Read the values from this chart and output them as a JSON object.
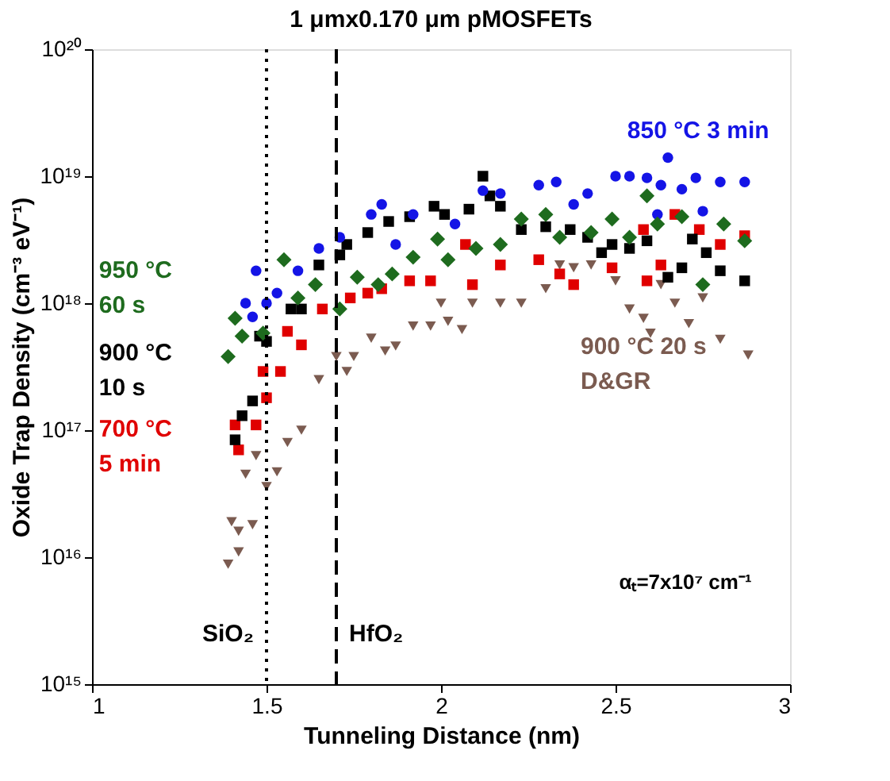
{
  "chart_data": {
    "type": "scatter",
    "title": "1 μmx0.170 μm pMOSFETs",
    "xlabel": "Tunneling Distance (nm)",
    "ylabel": "Oxide Trap Density (cm⁻³ eV⁻¹)",
    "xlim": [
      1,
      3
    ],
    "xticks": [
      1,
      1.5,
      2,
      2.5,
      3
    ],
    "ylim": [
      1000000000000000.0,
      1e+20
    ],
    "yticks": [
      {
        "value": 1000000000000000.0,
        "label": "10¹⁵"
      },
      {
        "value": 1e+16,
        "label": "10¹⁶"
      },
      {
        "value": 1e+17,
        "label": "10¹⁷"
      },
      {
        "value": 1e+18,
        "label": "10¹⁸"
      },
      {
        "value": 1e+19,
        "label": "10¹⁹"
      },
      {
        "value": 1e+20,
        "label": "10²⁰"
      }
    ],
    "log": true,
    "grid": false,
    "series": [
      {
        "name": "850 °C 3 min",
        "color": "#1414e6",
        "marker": "circle",
        "x": [
          1.44,
          1.46,
          1.47,
          1.5,
          1.53,
          1.59,
          1.65,
          1.71,
          1.8,
          1.83,
          1.87,
          1.92,
          2.04,
          2.12,
          2.17,
          2.28,
          2.33,
          2.38,
          2.42,
          2.5,
          2.54,
          2.59,
          2.62,
          2.63,
          2.65,
          2.69,
          2.73,
          2.75,
          2.8,
          2.87
        ],
        "values": [
          1e+18,
          7.8e+17,
          1.8e+18,
          1e+18,
          1.2e+18,
          1.8e+18,
          2.7e+18,
          3.3e+18,
          5e+18,
          6e+18,
          2.9e+18,
          5e+18,
          4.2e+18,
          7.7e+18,
          7.3e+18,
          8.5e+18,
          9e+18,
          6e+18,
          7.3e+18,
          1e+19,
          1e+19,
          9.7e+18,
          5e+18,
          8.5e+18,
          1.4e+19,
          7.9e+18,
          9.7e+18,
          5.3e+18,
          9e+18,
          9e+18
        ]
      },
      {
        "name": "950 °C\n60 s",
        "color": "#1e6b1e",
        "marker": "diamond",
        "x": [
          1.39,
          1.41,
          1.43,
          1.49,
          1.55,
          1.59,
          1.64,
          1.71,
          1.76,
          1.82,
          1.86,
          1.92,
          1.99,
          2.02,
          2.1,
          2.17,
          2.23,
          2.3,
          2.34,
          2.43,
          2.49,
          2.54,
          2.59,
          2.62,
          2.69,
          2.75,
          2.81,
          2.87
        ],
        "values": [
          3.8e+17,
          7.6e+17,
          5.5e+17,
          5.8e+17,
          2.2e+18,
          1.1e+18,
          1.4e+18,
          9e+17,
          1.6e+18,
          1.4e+18,
          1.7e+18,
          2.3e+18,
          3.2e+18,
          2.2e+18,
          2.7e+18,
          2.9e+18,
          4.6e+18,
          5e+18,
          3.3e+18,
          3.6e+18,
          4.6e+18,
          3.3e+18,
          7e+18,
          4.2e+18,
          4.8e+18,
          1.4e+18,
          4.2e+18,
          3.1e+18
        ]
      },
      {
        "name": "900 °C\n10 s",
        "color": "#000000",
        "marker": "square",
        "x": [
          1.41,
          1.43,
          1.46,
          1.48,
          1.5,
          1.57,
          1.6,
          1.65,
          1.71,
          1.73,
          1.79,
          1.85,
          1.91,
          1.98,
          2.01,
          2.08,
          2.12,
          2.14,
          2.17,
          2.23,
          2.3,
          2.37,
          2.42,
          2.46,
          2.49,
          2.54,
          2.59,
          2.65,
          2.69,
          2.72,
          2.76,
          2.8,
          2.87
        ],
        "values": [
          8.4e+16,
          1.3e+17,
          1.7e+17,
          5.5e+17,
          5e+17,
          9e+17,
          9e+17,
          2e+18,
          2.4e+18,
          2.9e+18,
          3.6e+18,
          4.4e+18,
          4.8e+18,
          5.8e+18,
          5e+18,
          5.5e+18,
          1e+19,
          7e+18,
          5.8e+18,
          3.8e+18,
          4e+18,
          3.8e+18,
          3.3e+18,
          2.5e+18,
          2.9e+18,
          2.7e+18,
          3.1e+18,
          1.6e+18,
          1.9e+18,
          3.2e+18,
          2.5e+18,
          1.8e+18,
          1.5e+18
        ]
      },
      {
        "name": "700 °C\n5 min",
        "color": "#e00000",
        "marker": "square",
        "x": [
          1.41,
          1.42,
          1.47,
          1.49,
          1.5,
          1.54,
          1.56,
          1.6,
          1.66,
          1.74,
          1.79,
          1.83,
          1.91,
          1.97,
          2.07,
          2.09,
          2.17,
          2.28,
          2.34,
          2.38,
          2.49,
          2.58,
          2.59,
          2.63,
          2.67,
          2.74,
          2.8,
          2.87
        ],
        "values": [
          1.1e+17,
          7e+16,
          1.1e+17,
          2.9e+17,
          1.8e+17,
          2.9e+17,
          6e+17,
          4.7e+17,
          9e+17,
          1.1e+18,
          1.2e+18,
          1.3e+18,
          1.5e+18,
          1.5e+18,
          2.9e+18,
          1.4e+18,
          2e+18,
          2.2e+18,
          1.7e+18,
          1.4e+18,
          1.9e+18,
          3.8e+18,
          1.5e+18,
          2e+18,
          5e+18,
          3.8e+18,
          2.9e+18,
          3.4e+18
        ]
      },
      {
        "name": "900 °C 20 s\nD&GR",
        "color": "#7b5b50",
        "marker": "triangle",
        "x": [
          1.39,
          1.4,
          1.42,
          1.42,
          1.44,
          1.46,
          1.47,
          1.5,
          1.53,
          1.56,
          1.6,
          1.65,
          1.7,
          1.73,
          1.75,
          1.8,
          1.84,
          1.87,
          1.92,
          1.97,
          2.0,
          2.02,
          2.06,
          2.09,
          2.17,
          2.23,
          2.3,
          2.34,
          2.38,
          2.43,
          2.5,
          2.54,
          2.58,
          2.6,
          2.63,
          2.67,
          2.71,
          2.75,
          2.8,
          2.88
        ],
        "values": [
          8800000000000000.0,
          1.9e+16,
          1.1e+16,
          1.6e+16,
          4.5e+16,
          1.8e+16,
          6.3e+16,
          3.6e+16,
          4.7e+16,
          8e+16,
          1e+17,
          2.5e+17,
          3.8e+17,
          2.9e+17,
          3.8e+17,
          5.3e+17,
          4.2e+17,
          4.6e+17,
          6.6e+17,
          6.6e+17,
          1e+18,
          7.2e+17,
          6.2e+17,
          1e+18,
          1e+18,
          1e+18,
          1.3e+18,
          2e+18,
          1.9e+18,
          2e+18,
          1.5e+18,
          9e+17,
          7.6e+17,
          5.8e+17,
          1.4e+18,
          1e+18,
          6.9e+17,
          1.1e+18,
          5.2e+17,
          3.9e+17
        ]
      }
    ],
    "ref_lines": [
      {
        "axis": "x",
        "value": 1.5,
        "label": "SiO₂",
        "line_style": "dotted",
        "color": "#000000"
      },
      {
        "axis": "x",
        "value": 1.7,
        "label": "HfO₂",
        "line_style": "dashed",
        "color": "#000000"
      }
    ],
    "annotations": [
      "αₜ=7x10⁷ cm⁻¹"
    ]
  }
}
